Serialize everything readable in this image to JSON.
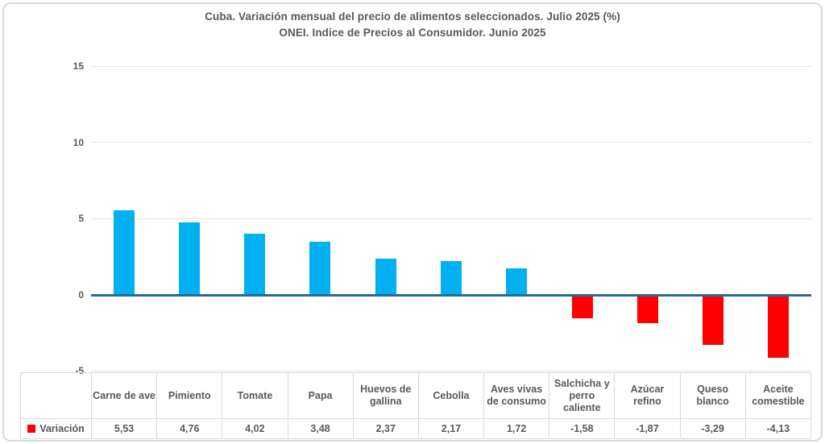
{
  "chart_data": {
    "type": "bar",
    "title": "Cuba. Variación mensual del precio de alimentos seleccionados. Julio 2025 (%)",
    "subtitle": "ONEI. Indice de Precios al Consumidor. Junio 2025",
    "categories": [
      "Carne de ave",
      "Pimiento",
      "Tomate",
      "Papa",
      "Huevos de gallina",
      "Cebolla",
      "Aves vivas de consumo",
      "Salchicha y perro caliente",
      "Azúcar refino",
      "Queso blanco",
      "Aceite comestible"
    ],
    "series": [
      {
        "name": "Variación",
        "values": [
          5.53,
          4.76,
          4.02,
          3.48,
          2.37,
          2.17,
          1.72,
          -1.58,
          -1.87,
          -3.29,
          -4.13
        ]
      }
    ],
    "display_values": [
      "5,53",
      "4,76",
      "4,02",
      "3,48",
      "2,37",
      "2,17",
      "1,72",
      "-1,58",
      "-1,87",
      "-3,29",
      "-4,13"
    ],
    "xlabel": "",
    "ylabel": "",
    "ylim": [
      -5,
      15
    ],
    "y_ticks": [
      15,
      10,
      5,
      0,
      -5
    ],
    "y_tick_labels": [
      "15",
      "10",
      "5",
      "0",
      "-5"
    ],
    "grid": true,
    "legend_position": "data-table-left",
    "colors": {
      "positive_bar": "#00B0F0",
      "negative_bar": "#FF0000",
      "zero_axis_line": "#236D95",
      "gridline": "#E4E4E4",
      "text": "#595959",
      "table_border": "#D9D9D9"
    }
  },
  "legend": {
    "label": "Variación",
    "key_color": "#FF0000"
  }
}
